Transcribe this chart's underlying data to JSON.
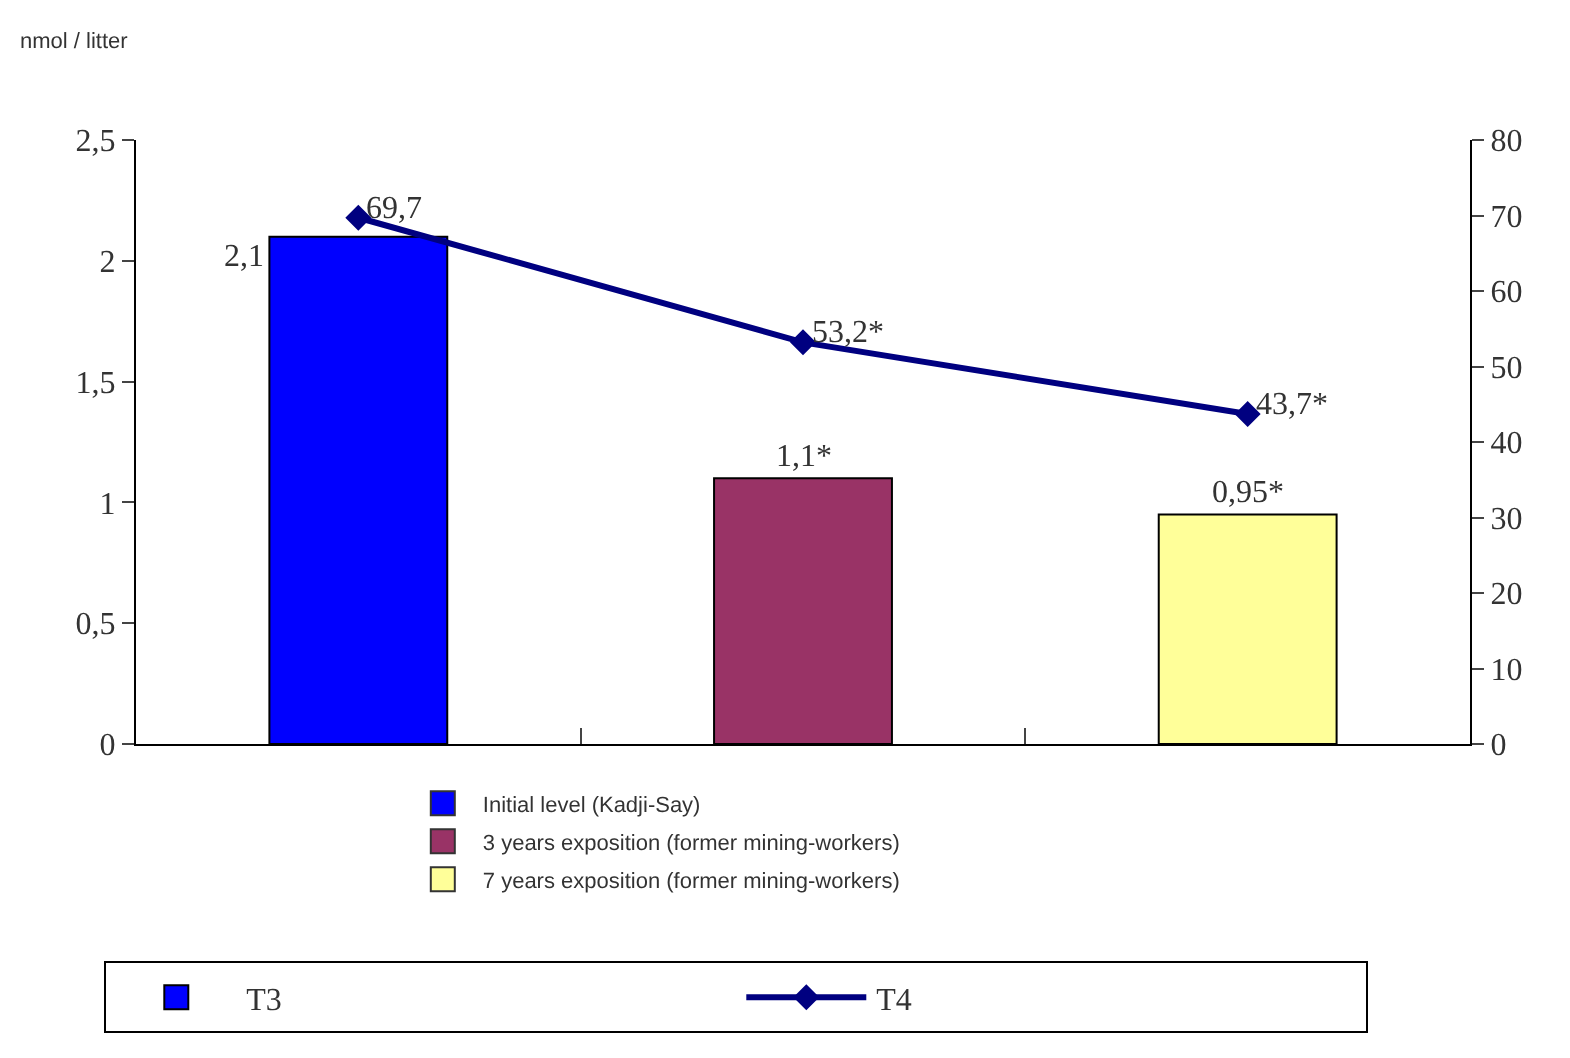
{
  "chart_data": {
    "type": "bar",
    "ylabel": "nmol / litter",
    "categories": [
      null,
      null,
      null
    ],
    "series": [
      {
        "name": "T3",
        "colors": [
          "#0000ff",
          "#993366",
          "#ffff99"
        ],
        "values": [
          2.1,
          1.1,
          0.95
        ],
        "value_labels": [
          "2,1",
          "1,1*",
          "0,95*"
        ]
      },
      {
        "name": "T4",
        "type": "line",
        "axis": "y2",
        "color": "#000080",
        "marker": "diamond",
        "values": [
          69.7,
          53.2,
          43.7
        ],
        "value_labels": [
          "69,7",
          "53,2*",
          "43,7*"
        ]
      }
    ],
    "ylim": [
      0,
      2.5
    ],
    "yticks": [
      {
        "value": 0,
        "label": "0"
      },
      {
        "value": 0.5,
        "label": "0,5"
      },
      {
        "value": 1,
        "label": "1"
      },
      {
        "value": 1.5,
        "label": "1,5"
      },
      {
        "value": 2,
        "label": "2"
      },
      {
        "value": 2.5,
        "label": "2,5"
      }
    ],
    "y2lim": [
      0,
      80
    ],
    "y2ticks": [
      0,
      10,
      20,
      30,
      40,
      50,
      60,
      70,
      80
    ],
    "annotations": [
      "Initial level (Kadji-Say)",
      "3 years exposition (former mining-workers)",
      "7 years exposition (former mining-workers)"
    ],
    "legend": "bottom"
  }
}
